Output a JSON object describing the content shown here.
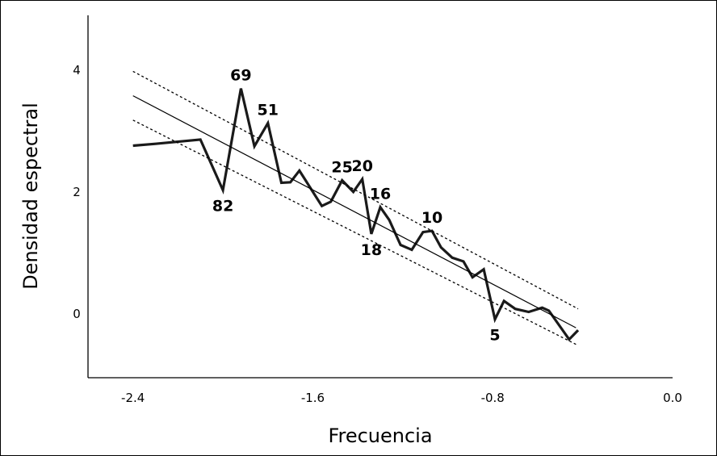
{
  "chart_data": {
    "type": "line",
    "xlabel": "Frecuencia",
    "ylabel": "Densidad espectral",
    "xlim": [
      -2.6,
      0.0
    ],
    "ylim": [
      -1.05,
      4.9
    ],
    "x_ticks": [
      -2.4,
      -1.6,
      -0.8,
      0.0
    ],
    "x_tick_labels": [
      "-2.4",
      "-1.6",
      "-0.8",
      "0.0"
    ],
    "y_ticks": [
      0,
      2,
      4
    ],
    "y_tick_labels": [
      "0",
      "2",
      "4"
    ],
    "grid": false,
    "series": [
      {
        "style": "thick-solid",
        "points": [
          [
            -2.4,
            2.76
          ],
          [
            -2.3,
            2.79
          ],
          [
            -2.1,
            2.86
          ],
          [
            -2.0,
            2.03
          ],
          [
            -1.92,
            3.7
          ],
          [
            -1.86,
            2.75
          ],
          [
            -1.8,
            3.13
          ],
          [
            -1.74,
            2.15
          ],
          [
            -1.7,
            2.16
          ],
          [
            -1.66,
            2.35
          ],
          [
            -1.56,
            1.77
          ],
          [
            -1.52,
            1.84
          ],
          [
            -1.47,
            2.19
          ],
          [
            -1.42,
            2.0
          ],
          [
            -1.38,
            2.21
          ],
          [
            -1.34,
            1.31
          ],
          [
            -1.3,
            1.75
          ],
          [
            -1.26,
            1.54
          ],
          [
            -1.21,
            1.13
          ],
          [
            -1.16,
            1.05
          ],
          [
            -1.11,
            1.34
          ],
          [
            -1.07,
            1.36
          ],
          [
            -1.03,
            1.09
          ],
          [
            -0.98,
            0.92
          ],
          [
            -0.93,
            0.86
          ],
          [
            -0.89,
            0.6
          ],
          [
            -0.84,
            0.73
          ],
          [
            -0.79,
            -0.09
          ],
          [
            -0.75,
            0.21
          ],
          [
            -0.7,
            0.08
          ],
          [
            -0.64,
            0.03
          ],
          [
            -0.58,
            0.1
          ],
          [
            -0.55,
            0.05
          ],
          [
            -0.46,
            -0.42
          ],
          [
            -0.42,
            -0.27
          ]
        ]
      },
      {
        "style": "thin-solid",
        "points": [
          [
            -2.4,
            3.58
          ],
          [
            -0.43,
            -0.23
          ]
        ]
      },
      {
        "style": "dotted",
        "points": [
          [
            -2.4,
            3.98
          ],
          [
            -0.42,
            0.08
          ]
        ]
      },
      {
        "style": "dotted",
        "points": [
          [
            -2.4,
            3.18
          ],
          [
            -0.42,
            -0.52
          ]
        ]
      }
    ],
    "annotations": [
      {
        "text": "69",
        "x": -1.92,
        "y": 3.7,
        "position": "above"
      },
      {
        "text": "51",
        "x": -1.8,
        "y": 3.13,
        "position": "above"
      },
      {
        "text": "82",
        "x": -2.0,
        "y": 2.03,
        "position": "below"
      },
      {
        "text": "25",
        "x": -1.47,
        "y": 2.19,
        "position": "above"
      },
      {
        "text": "20",
        "x": -1.38,
        "y": 2.21,
        "position": "above"
      },
      {
        "text": "16",
        "x": -1.3,
        "y": 1.75,
        "position": "above"
      },
      {
        "text": "18",
        "x": -1.34,
        "y": 1.31,
        "position": "below"
      },
      {
        "text": "10",
        "x": -1.07,
        "y": 1.36,
        "position": "above"
      },
      {
        "text": "5",
        "x": -0.79,
        "y": -0.09,
        "position": "below"
      }
    ]
  }
}
